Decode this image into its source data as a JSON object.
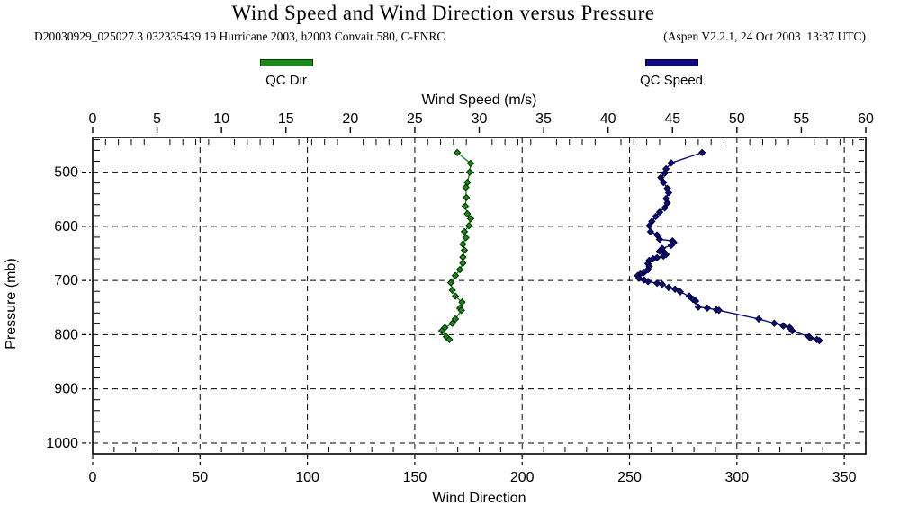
{
  "title": "Wind Speed and Wind Direction versus Pressure",
  "subtitle_left": "D20030929_025027.3 032335439 19 Hurricane 2003, h2003 Convair 580, C-FNRC",
  "subtitle_right": "(Aspen V2.2.1, 24 Oct 2003  13:37 UTC)",
  "legend": {
    "dir": {
      "label": "QC Dir",
      "color": "#1e8a1e",
      "border": "#003c00"
    },
    "speed": {
      "label": "QC Speed",
      "color": "#0d0d80",
      "border": "#000038"
    }
  },
  "chart_data": {
    "type": "line",
    "title": "Wind Speed and Wind Direction versus Pressure",
    "grid": "dashed",
    "legend_position": "top",
    "axes": {
      "top": {
        "label": "Wind Speed (m/s)",
        "min": 0,
        "max": 60,
        "minor_step": 1,
        "major_ticks": [
          0,
          5,
          10,
          15,
          20,
          25,
          30,
          35,
          40,
          45,
          50,
          55,
          60
        ]
      },
      "bottom": {
        "label": "Wind Direction",
        "min": 0,
        "max": 360,
        "minor_step": 10,
        "major_ticks": [
          0,
          50,
          100,
          150,
          200,
          250,
          300,
          350
        ]
      },
      "left": {
        "label": "Pressure (mb)",
        "min": 436,
        "max": 1020,
        "minor_step": 20,
        "inverted_down": true,
        "major_ticks": [
          500,
          600,
          700,
          800,
          900,
          1000
        ]
      }
    },
    "series": [
      {
        "name": "QC Dir",
        "x_axis": "bottom",
        "color": "#1e8a1e",
        "marker_edge": "#003000",
        "points": [
          [
            169.8,
            464
          ],
          [
            176.0,
            484
          ],
          [
            175.6,
            500
          ],
          [
            174.5,
            519
          ],
          [
            173.8,
            528
          ],
          [
            174.0,
            547
          ],
          [
            173.5,
            563
          ],
          [
            174.5,
            577
          ],
          [
            176.0,
            586
          ],
          [
            175.2,
            599
          ],
          [
            173.1,
            610
          ],
          [
            173.8,
            621
          ],
          [
            172.4,
            633
          ],
          [
            173.1,
            644
          ],
          [
            172.4,
            657
          ],
          [
            172.4,
            668
          ],
          [
            171.0,
            680
          ],
          [
            168.9,
            691
          ],
          [
            166.8,
            704
          ],
          [
            167.5,
            718
          ],
          [
            168.9,
            729
          ],
          [
            172.0,
            740
          ],
          [
            171.0,
            751
          ],
          [
            171.7,
            755
          ],
          [
            168.9,
            771
          ],
          [
            167.5,
            779
          ],
          [
            164.0,
            787
          ],
          [
            162.6,
            793
          ],
          [
            164.7,
            804
          ],
          [
            166.1,
            809
          ]
        ]
      },
      {
        "name": "QC Speed",
        "x_axis": "top",
        "color": "#0d0d80",
        "marker_edge": "#000030",
        "points": [
          [
            47.3,
            464
          ],
          [
            44.9,
            483
          ],
          [
            44.5,
            494
          ],
          [
            44.4,
            502
          ],
          [
            44.1,
            510
          ],
          [
            44.3,
            519
          ],
          [
            44.6,
            530
          ],
          [
            44.7,
            538
          ],
          [
            44.5,
            549
          ],
          [
            44.6,
            557
          ],
          [
            44.4,
            566
          ],
          [
            44.0,
            574
          ],
          [
            43.7,
            582
          ],
          [
            43.4,
            591
          ],
          [
            43.2,
            599
          ],
          [
            43.3,
            610
          ],
          [
            43.8,
            616
          ],
          [
            44.0,
            624
          ],
          [
            45.0,
            627
          ],
          [
            45.1,
            630
          ],
          [
            44.9,
            635
          ],
          [
            44.2,
            641
          ],
          [
            44.0,
            646
          ],
          [
            44.4,
            649
          ],
          [
            44.5,
            652
          ],
          [
            44.3,
            655
          ],
          [
            43.8,
            658
          ],
          [
            43.5,
            660
          ],
          [
            43.2,
            663
          ],
          [
            43.1,
            669
          ],
          [
            43.2,
            674
          ],
          [
            43.1,
            680
          ],
          [
            42.8,
            685
          ],
          [
            42.5,
            688
          ],
          [
            42.3,
            691
          ],
          [
            42.4,
            696
          ],
          [
            42.8,
            699
          ],
          [
            43.1,
            702
          ],
          [
            43.8,
            705
          ],
          [
            44.2,
            707
          ],
          [
            44.7,
            713
          ],
          [
            45.2,
            716
          ],
          [
            45.6,
            721
          ],
          [
            46.3,
            729
          ],
          [
            46.6,
            735
          ],
          [
            46.8,
            738
          ],
          [
            47.0,
            749
          ],
          [
            47.7,
            751
          ],
          [
            48.4,
            754
          ],
          [
            48.6,
            755
          ],
          [
            51.7,
            771
          ],
          [
            52.9,
            779
          ],
          [
            53.6,
            784
          ],
          [
            54.1,
            787
          ],
          [
            54.3,
            793
          ],
          [
            55.6,
            804
          ],
          [
            55.7,
            806
          ],
          [
            56.2,
            809
          ],
          [
            56.4,
            811
          ]
        ]
      }
    ]
  }
}
